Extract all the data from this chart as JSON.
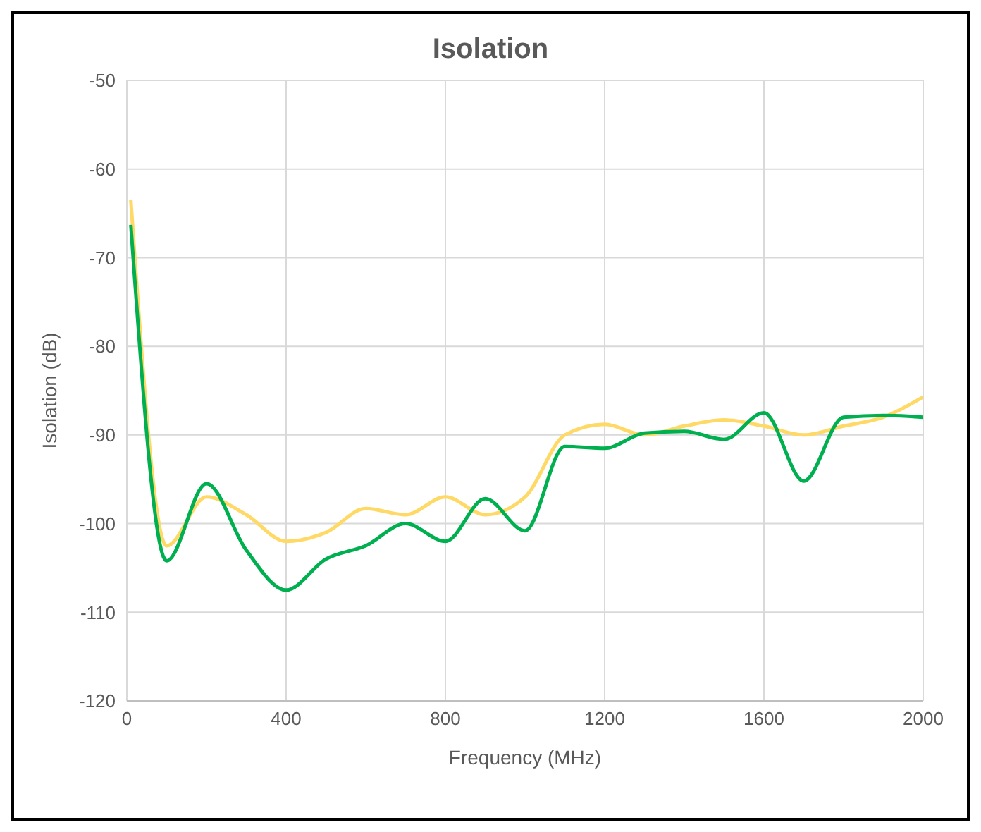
{
  "chart_data": {
    "type": "line",
    "title": "Isolation",
    "xlabel": "Frequency (MHz)",
    "ylabel": "Isolation (dB)",
    "x": [
      10,
      100,
      200,
      300,
      400,
      500,
      600,
      700,
      800,
      900,
      1000,
      1100,
      1200,
      1300,
      1400,
      1500,
      1600,
      1700,
      1800,
      1900,
      2000
    ],
    "series": [
      {
        "color": "#ffd966",
        "values": [
          -63.5,
          -102.5,
          -97,
          -99,
          -102,
          -101,
          -98.3,
          -99,
          -97,
          -99,
          -97,
          -90,
          -88.8,
          -90,
          -89,
          -88.3,
          -89,
          -90,
          -89,
          -88,
          -85.7
        ]
      },
      {
        "color": "#00b050",
        "values": [
          -66.3,
          -104.2,
          -95.5,
          -103,
          -107.5,
          -104,
          -102.5,
          -100,
          -102,
          -97.2,
          -100.8,
          -91.3,
          -91.5,
          -89.8,
          -89.6,
          -90.5,
          -87.5,
          -95.2,
          -88,
          -87.8,
          -88
        ]
      }
    ],
    "xlim": [
      0,
      2000
    ],
    "xticks": [
      0,
      400,
      800,
      1200,
      1600,
      2000
    ],
    "ylim": [
      -120,
      -50
    ],
    "yticks": [
      -120,
      -110,
      -100,
      -90,
      -80,
      -70,
      -60,
      -50
    ],
    "grid": true,
    "marker": "none",
    "line_style": "solid"
  }
}
